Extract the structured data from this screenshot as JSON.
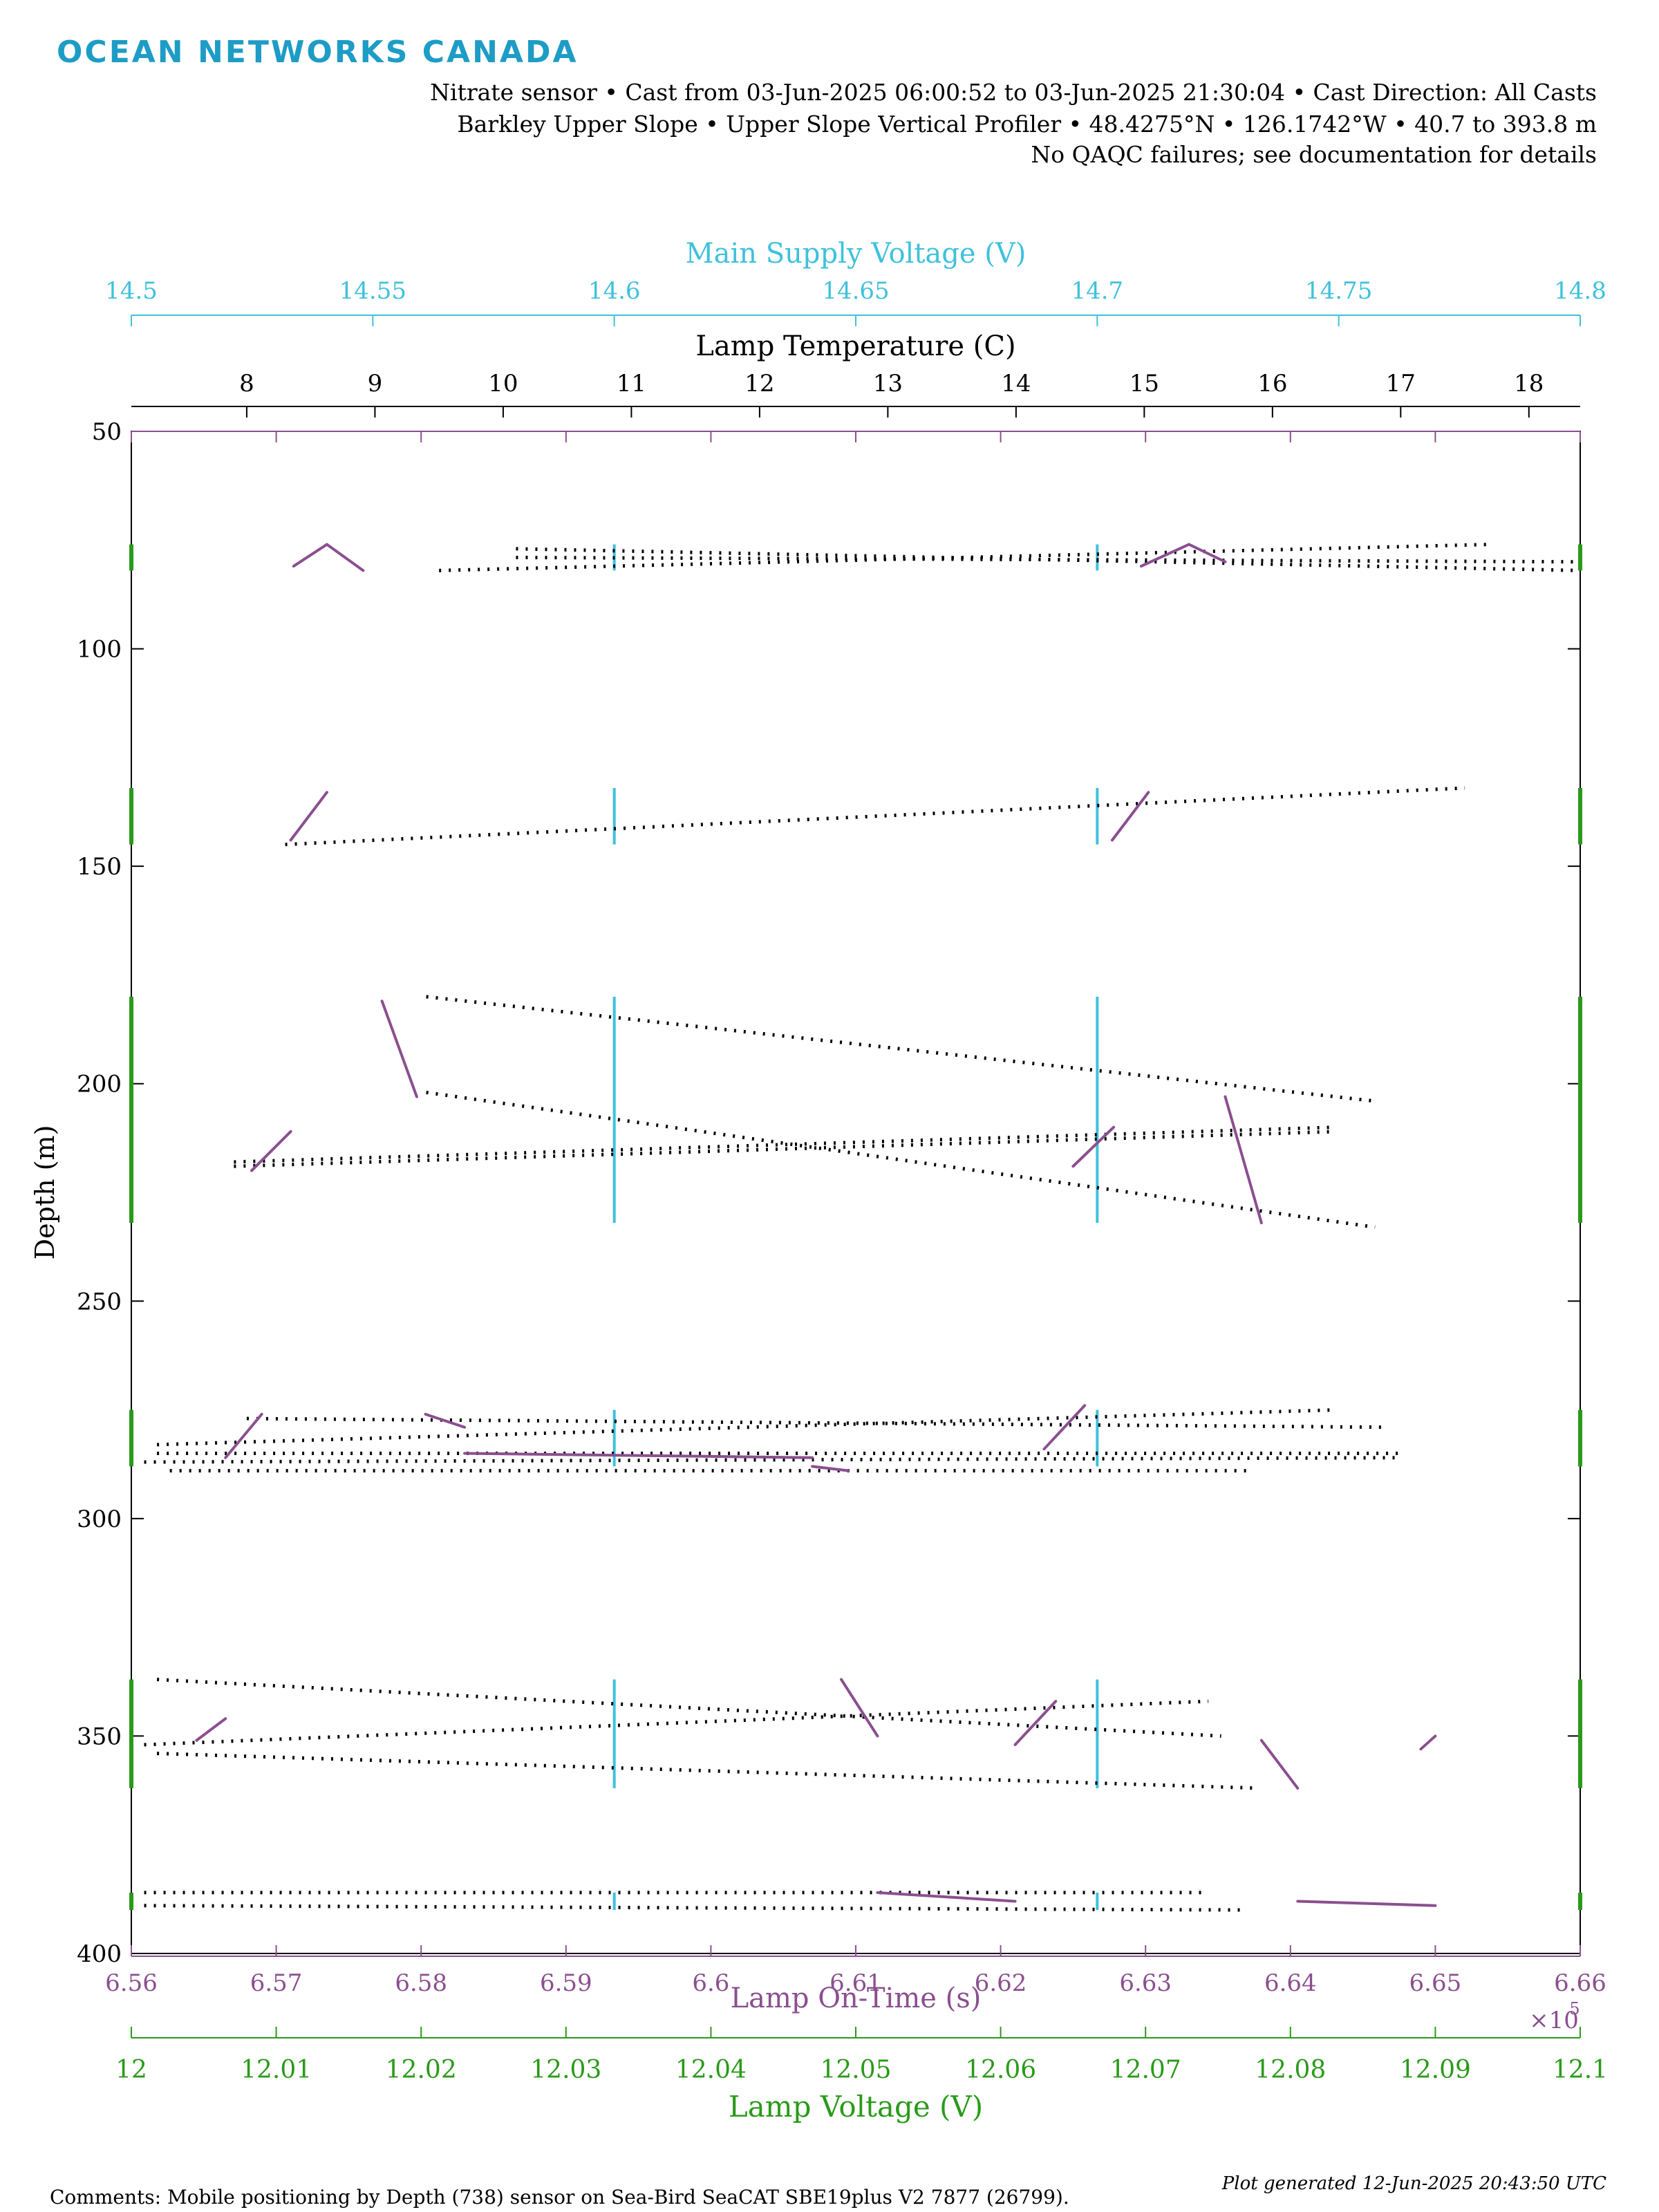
{
  "logo_text": "OCEAN NETWORKS CANADA",
  "header": {
    "line1": "Nitrate sensor • Cast from 03-Jun-2025 06:00:52 to 03-Jun-2025 21:30:04 • Cast Direction: All Casts",
    "line2": "Barkley Upper Slope • Upper Slope Vertical Profiler • 48.4275°N • 126.1742°W • 40.7 to 393.8 m",
    "line3": "No QAQC failures; see documentation for details"
  },
  "footer": {
    "comments": "Comments: Mobile positioning by Depth (738) sensor on Sea-Bird SeaCAT SBE19plus V2 7877 (26799).",
    "generated": "Plot generated 12-Jun-2025 20:43:50 UTC"
  },
  "colors": {
    "voltage_supply": "#3fc1dc",
    "lamp_temp": "#000000",
    "lamp_on_time": "#8b4f8f",
    "lamp_voltage": "#2a9a1a"
  },
  "chart_data": {
    "type": "scatter",
    "y_axis": {
      "label": "Depth (m)",
      "range": [
        50,
        400
      ],
      "reversed": true,
      "ticks": [
        "50",
        "100",
        "150",
        "200",
        "250",
        "300",
        "350",
        "400"
      ]
    },
    "x_axes": [
      {
        "id": "supply",
        "position": "top-outer",
        "label": "Main Supply Voltage (V)",
        "range": [
          14.5,
          14.8
        ],
        "ticks": [
          "14.5",
          "14.55",
          "14.6",
          "14.65",
          "14.7",
          "14.75",
          "14.8"
        ],
        "color": "#3fc1dc"
      },
      {
        "id": "temp",
        "position": "top-inner",
        "label": "Lamp Temperature (C)",
        "range": [
          7.1,
          18.4
        ],
        "ticks": [
          "8",
          "9",
          "10",
          "11",
          "12",
          "13",
          "14",
          "15",
          "16",
          "17",
          "18"
        ],
        "color": "#000000"
      },
      {
        "id": "ontime",
        "position": "bottom-inner",
        "label": "Lamp On-Time (s)",
        "range": [
          6.56,
          6.66
        ],
        "ticks": [
          "6.56",
          "6.57",
          "6.58",
          "6.59",
          "6.6",
          "6.61",
          "6.62",
          "6.63",
          "6.64",
          "6.65",
          "6.66"
        ],
        "exponent": "×10",
        "exponent_power": "5",
        "color": "#8b4f8f"
      },
      {
        "id": "voltage",
        "position": "bottom-outer",
        "label": "Lamp Voltage (V)",
        "range": [
          12,
          12.1
        ],
        "ticks": [
          "12",
          "12.01",
          "12.02",
          "12.03",
          "12.04",
          "12.05",
          "12.06",
          "12.07",
          "12.08",
          "12.09",
          "12.1"
        ],
        "color": "#2a9a1a"
      }
    ],
    "series": [
      {
        "axis": "supply",
        "kind": "vlines",
        "points": [
          [
            14.6,
            76,
            82
          ],
          [
            14.7,
            76,
            82
          ],
          [
            14.6,
            132,
            145
          ],
          [
            14.7,
            132,
            145
          ],
          [
            14.6,
            180,
            232
          ],
          [
            14.7,
            180,
            232
          ],
          [
            14.6,
            275,
            288
          ],
          [
            14.7,
            275,
            288
          ],
          [
            14.6,
            337,
            362
          ],
          [
            14.7,
            337,
            362
          ],
          [
            14.6,
            386,
            390
          ],
          [
            14.7,
            386,
            390
          ]
        ]
      },
      {
        "axis": "temp",
        "kind": "dotlines",
        "points": [
          [
            9.5,
            82,
            17.7,
            76
          ],
          [
            10.1,
            77,
            18.4,
            82
          ],
          [
            10.1,
            79,
            18.4,
            80
          ],
          [
            8.3,
            145,
            17.5,
            132
          ],
          [
            9.4,
            180,
            16.8,
            204
          ],
          [
            9.4,
            202,
            16.8,
            233
          ],
          [
            7.9,
            219,
            16.5,
            211
          ],
          [
            7.9,
            218,
            16.5,
            210
          ],
          [
            8.0,
            277,
            16.9,
            279
          ],
          [
            7.3,
            283,
            16.5,
            275
          ],
          [
            7.3,
            285,
            17.0,
            285
          ],
          [
            7.2,
            287,
            17.0,
            286
          ],
          [
            7.4,
            289,
            15.8,
            289
          ],
          [
            7.3,
            337,
            15.6,
            350
          ],
          [
            7.2,
            352,
            15.5,
            342
          ],
          [
            7.3,
            354,
            15.9,
            362
          ],
          [
            7.2,
            386,
            15.5,
            386
          ],
          [
            7.2,
            389,
            15.8,
            390
          ]
        ]
      },
      {
        "axis": "ontime",
        "kind": "segments",
        "points": [
          [
            6.5712,
            81,
            6.5735,
            76
          ],
          [
            6.5735,
            76,
            6.576,
            82
          ],
          [
            6.6297,
            81,
            6.633,
            76
          ],
          [
            6.633,
            76,
            6.6355,
            80
          ],
          [
            6.571,
            144,
            6.5735,
            133
          ],
          [
            6.6277,
            144,
            6.6302,
            133
          ],
          [
            6.5773,
            181,
            6.5797,
            203
          ],
          [
            6.6355,
            203,
            6.638,
            232
          ],
          [
            6.5683,
            220,
            6.571,
            211
          ],
          [
            6.625,
            219,
            6.6278,
            210
          ],
          [
            6.5665,
            286,
            6.569,
            276
          ],
          [
            6.5803,
            276,
            6.583,
            279
          ],
          [
            6.583,
            285,
            6.607,
            286
          ],
          [
            6.607,
            288,
            6.6095,
            289
          ],
          [
            6.623,
            284,
            6.6258,
            274
          ],
          [
            6.5645,
            351,
            6.5665,
            346
          ],
          [
            6.609,
            337,
            6.6115,
            350
          ],
          [
            6.621,
            352,
            6.6238,
            342
          ],
          [
            6.638,
            351,
            6.6405,
            362
          ],
          [
            6.649,
            353,
            6.65,
            350
          ],
          [
            6.6115,
            386,
            6.621,
            388
          ],
          [
            6.6405,
            388,
            6.65,
            389
          ]
        ]
      },
      {
        "axis": "voltage",
        "kind": "edge-ticks",
        "points": [
          [
            76,
            82
          ],
          [
            132,
            145
          ],
          [
            180,
            232
          ],
          [
            275,
            288
          ],
          [
            337,
            362
          ],
          [
            386,
            390
          ]
        ]
      }
    ]
  }
}
